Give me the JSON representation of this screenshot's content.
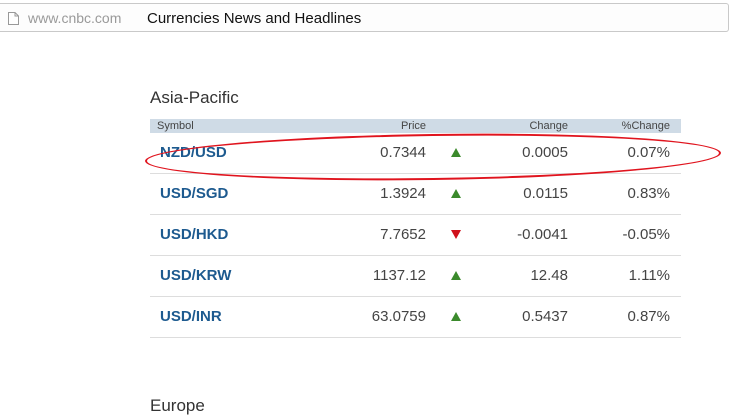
{
  "browser": {
    "url": "www.cnbc.com",
    "title": "Currencies News and Headlines"
  },
  "sections": [
    {
      "title": "Asia-Pacific",
      "columns": {
        "symbol": "Symbol",
        "price": "Price",
        "change": "Change",
        "pct_change": "%Change"
      },
      "rows": [
        {
          "symbol": "NZD/USD",
          "price": "0.7344",
          "direction": "up",
          "change": "0.0005",
          "pct_change": "0.07%",
          "highlighted": true
        },
        {
          "symbol": "USD/SGD",
          "price": "1.3924",
          "direction": "up",
          "change": "0.0115",
          "pct_change": "0.83%"
        },
        {
          "symbol": "USD/HKD",
          "price": "7.7652",
          "direction": "down",
          "change": "-0.0041",
          "pct_change": "-0.05%"
        },
        {
          "symbol": "USD/KRW",
          "price": "1137.12",
          "direction": "up",
          "change": "12.48",
          "pct_change": "1.11%"
        },
        {
          "symbol": "USD/INR",
          "price": "63.0759",
          "direction": "up",
          "change": "0.5437",
          "pct_change": "0.87%"
        }
      ]
    },
    {
      "title": "Europe"
    }
  ],
  "colors": {
    "symbol_link": "#1d5a8f",
    "header_bg": "#cfdbe6",
    "up_arrow": "#3b8a2c",
    "down_arrow": "#d0101b",
    "annotation_circle": "#e0141e"
  },
  "icons": {
    "page": "page-icon",
    "up": "triangle-up-icon",
    "down": "triangle-down-icon"
  }
}
